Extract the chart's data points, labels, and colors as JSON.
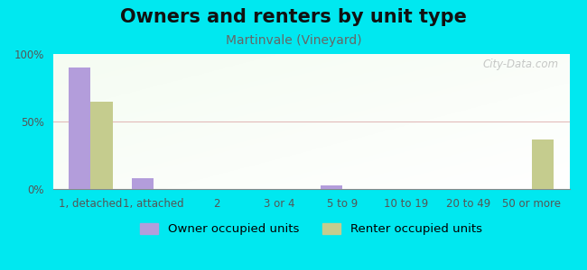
{
  "title": "Owners and renters by unit type",
  "subtitle": "Martinvale (Vineyard)",
  "categories": [
    "1, detached",
    "1, attached",
    "2",
    "3 or 4",
    "5 to 9",
    "10 to 19",
    "20 to 49",
    "50 or more"
  ],
  "owner_values": [
    90,
    8,
    0,
    0,
    3,
    0,
    0,
    0
  ],
  "renter_values": [
    65,
    0,
    0,
    0,
    0,
    0,
    0,
    37
  ],
  "owner_color": "#b39ddb",
  "renter_color": "#c5cc8e",
  "background_color": "#00e8f0",
  "ylim": [
    0,
    100
  ],
  "yticks": [
    0,
    50,
    100
  ],
  "ytick_labels": [
    "0%",
    "50%",
    "100%"
  ],
  "legend_owner": "Owner occupied units",
  "legend_renter": "Renter occupied units",
  "bar_width": 0.35,
  "title_fontsize": 15,
  "subtitle_fontsize": 10,
  "tick_fontsize": 8.5,
  "legend_fontsize": 9.5,
  "watermark": "City-Data.com"
}
